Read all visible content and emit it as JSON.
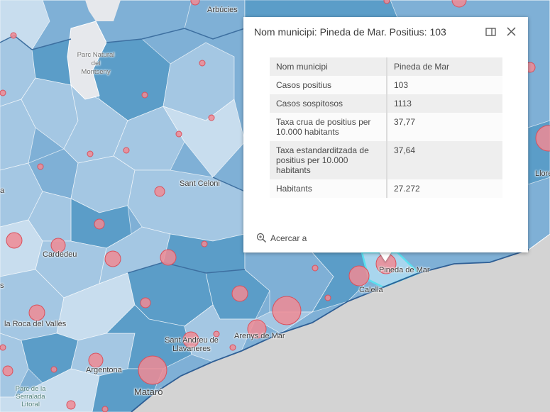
{
  "popup": {
    "title": "Nom municipi: Pineda de Mar. Positius: 103",
    "rows": [
      {
        "label": "Nom municipi",
        "value": "Pineda de Mar"
      },
      {
        "label": "Casos positius",
        "value": "103"
      },
      {
        "label": "Casos sospitosos",
        "value": "1113"
      },
      {
        "label": "Taxa crua de positius per 10.000 habitants",
        "value": "37,77"
      },
      {
        "label": "Taxa estandarditzada de positius per 10.000 habitants",
        "value": "37,64"
      },
      {
        "label": "Habitants",
        "value": "27.272"
      }
    ],
    "zoom_label": "Acercar a"
  },
  "map": {
    "labels": {
      "arbucies": "Arbúcies",
      "parc_montseny_1": "Parc Natural",
      "parc_montseny_2": "del",
      "parc_montseny_3": "Montseny",
      "sant_celoni": "Sant Celoni",
      "cardedeu": "Cardedeu",
      "la_roca": "la Roca del Vallès",
      "argentona": "Argentona",
      "mataro": "Mataró",
      "sant_andreu_1": "Sant Andreu de",
      "sant_andreu_2": "Llavaneres",
      "arenys": "Arenys de Mar",
      "calella": "Calella",
      "pineda": "Pineda de Mar",
      "lloret": "Llore",
      "left_edge_a": "a",
      "left_edge_s": "s",
      "parc_serralada_1": "Parc de la",
      "parc_serralada_2": "Serralada",
      "parc_serralada_3": "Litoral"
    },
    "colors": {
      "sea": "#d3d3d3",
      "dark": "#5b9dc8",
      "mid": "#7fb0d6",
      "light": "#a4c7e3",
      "pale": "#c8ddee",
      "park": "#e6e8ec",
      "marker_fill": "#f08b94",
      "marker_stroke": "#d9505c",
      "selected": "#59e0f0"
    }
  }
}
